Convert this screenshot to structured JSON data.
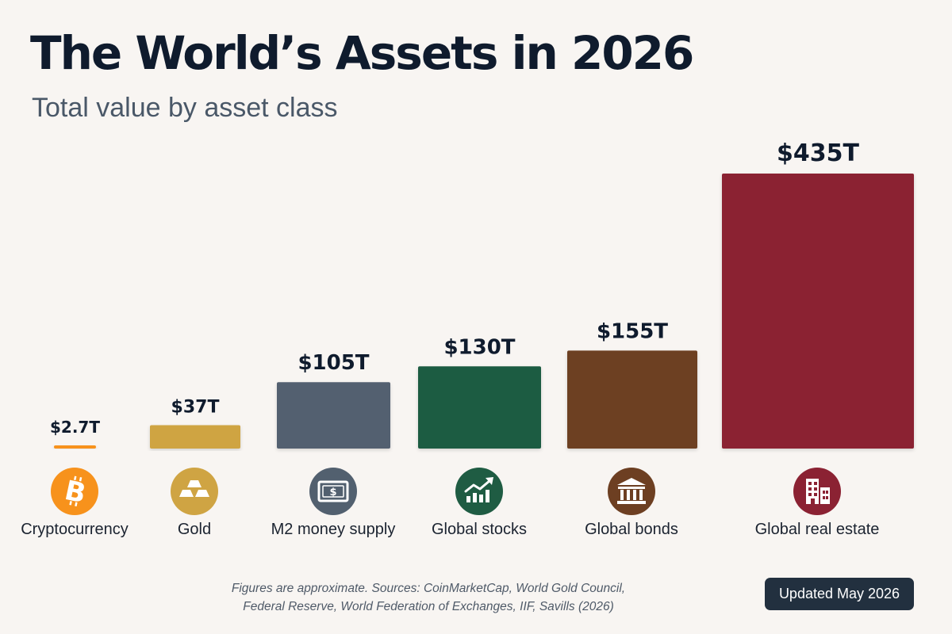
{
  "header": {
    "title": "The World’s Assets in 2026",
    "subtitle": "Total value by asset class"
  },
  "chart_data": {
    "type": "bar",
    "title": "The World’s Assets in 2026",
    "subtitle": "Total value by asset class",
    "categories": [
      "Cryptocurrency",
      "Gold",
      "M2 money supply",
      "Global stocks",
      "Global bonds",
      "Global real estate"
    ],
    "values": [
      2.7,
      37,
      105,
      130,
      155,
      435
    ],
    "value_labels": [
      "$2.7T",
      "$37T",
      "$105T",
      "$130T",
      "$155T",
      "$435T"
    ],
    "unit": "trillion USD",
    "colors": [
      "#f7921c",
      "#cfa443",
      "#52606f",
      "#1f5c43",
      "#6d3f22",
      "#8b2233"
    ],
    "icons": [
      "bitcoin-icon",
      "gold-bars-icon",
      "banknote-icon",
      "stock-chart-icon",
      "bank-building-icon",
      "office-buildings-icon"
    ],
    "xlabel": "",
    "ylabel": "",
    "grid": false,
    "legend": "none"
  },
  "footer": {
    "note_line1": "Figures are approximate. Sources: CoinMarketCap, World Gold Council,",
    "note_line2": "Federal Reserve, World Federation of Exchanges, IIF, Savills (2026)",
    "badge": "Updated May 2026"
  }
}
